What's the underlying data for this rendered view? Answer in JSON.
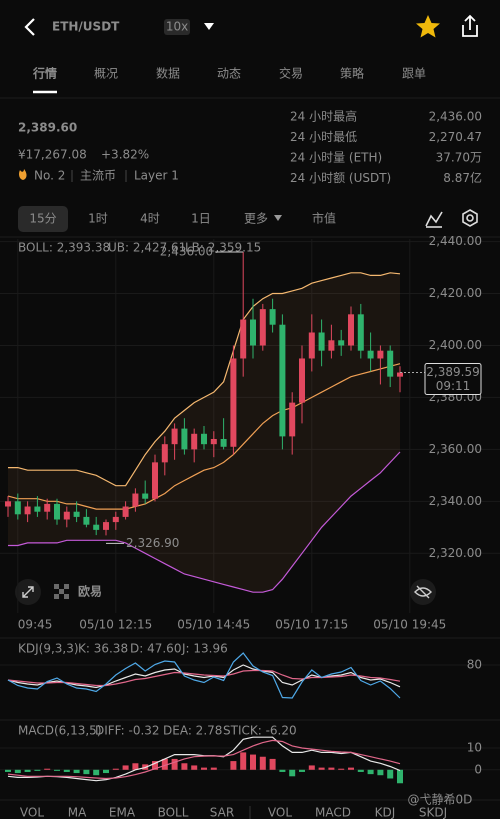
{
  "header": {
    "pair": "ETH/USDT",
    "leverage": "10x"
  },
  "tabs": [
    "行情",
    "概况",
    "数据",
    "动态",
    "交易",
    "策略",
    "跟单"
  ],
  "price": {
    "last": "2,389.60",
    "cny": "¥17,267.08",
    "change": "+3.82%",
    "rank": "No. 2",
    "tags": [
      "主流币",
      "Layer 1"
    ]
  },
  "stats": [
    {
      "label": "24 小时最高",
      "value": "2,436.00"
    },
    {
      "label": "24 小时最低",
      "value": "2,270.47"
    },
    {
      "label": "24 小时量 (ETH)",
      "value": "37.70万"
    },
    {
      "label": "24 小时额 (USDT)",
      "value": "8.87亿"
    }
  ],
  "intervals": [
    "15分",
    "1时",
    "4时",
    "1日",
    "更多",
    "市值"
  ],
  "chart_data": [
    {
      "type": "candlestick",
      "ylim": [
        2297,
        2441
      ],
      "yticks": [
        {
          "value": 2440,
          "label": "2,440.00"
        },
        {
          "value": 2420,
          "label": "2,420.00"
        },
        {
          "value": 2400,
          "label": "2,400.00"
        },
        {
          "value": 2380,
          "label": "2,380.00"
        },
        {
          "value": 2360,
          "label": "2,360.00"
        },
        {
          "value": 2340,
          "label": "2,340.00"
        },
        {
          "value": 2320,
          "label": "2,320.00"
        }
      ],
      "xticks": [
        {
          "value": 1,
          "label": "09:45"
        },
        {
          "value": 11,
          "label": "05/10 12:15"
        },
        {
          "value": 21,
          "label": "05/10 14:45"
        },
        {
          "value": 31,
          "label": "05/10 17:15"
        },
        {
          "value": 41,
          "label": "05/10 19:45"
        }
      ],
      "up_color": "#e1485f",
      "down_color": "#2fb36d",
      "open": [
        2338,
        2340,
        2335,
        2338,
        2336,
        2339,
        2333,
        2336,
        2334,
        2331,
        2329,
        2332,
        2334,
        2338,
        2343,
        2341,
        2355,
        2362,
        2368,
        2360,
        2366,
        2362,
        2364,
        2361,
        2395,
        2410,
        2400,
        2414,
        2408,
        2365,
        2378,
        2395,
        2405,
        2398,
        2402,
        2400,
        2412,
        2398,
        2395,
        2398,
        2388
      ],
      "high": [
        2342,
        2343,
        2340,
        2342,
        2341,
        2341,
        2338,
        2340,
        2337,
        2334,
        2333,
        2336,
        2340,
        2345,
        2348,
        2358,
        2365,
        2370,
        2372,
        2368,
        2369,
        2367,
        2372,
        2400,
        2436,
        2418,
        2416,
        2418,
        2412,
        2382,
        2400,
        2412,
        2410,
        2408,
        2406,
        2415,
        2416,
        2405,
        2400,
        2400,
        2392
      ],
      "low": [
        2334,
        2333,
        2332,
        2334,
        2333,
        2331,
        2330,
        2332,
        2330,
        2327,
        2326.9,
        2329,
        2333,
        2336,
        2339,
        2340,
        2350,
        2356,
        2358,
        2355,
        2360,
        2357,
        2360,
        2358,
        2388,
        2395,
        2398,
        2405,
        2360,
        2358,
        2370,
        2390,
        2392,
        2395,
        2396,
        2398,
        2395,
        2390,
        2385,
        2384,
        2382
      ],
      "close": [
        2340,
        2335,
        2338,
        2336,
        2339,
        2333,
        2336,
        2334,
        2331,
        2329,
        2332,
        2334,
        2338,
        2343,
        2341,
        2355,
        2362,
        2368,
        2360,
        2366,
        2362,
        2364,
        2361,
        2395,
        2410,
        2400,
        2414,
        2408,
        2365,
        2378,
        2395,
        2405,
        2398,
        2402,
        2400,
        2412,
        2398,
        2395,
        2398,
        2388,
        2389.59
      ],
      "series": [
        {
          "name": "BOLL: 2,393.38",
          "color": "#f0a055",
          "values": [
            2342,
            2341,
            2341,
            2341,
            2340,
            2340,
            2339,
            2339,
            2338,
            2337,
            2337,
            2337,
            2337,
            2338,
            2339,
            2341,
            2343,
            2346,
            2348,
            2350,
            2352,
            2353,
            2355,
            2358,
            2362,
            2366,
            2370,
            2373,
            2375,
            2376,
            2378,
            2380,
            2382,
            2384,
            2386,
            2388,
            2389,
            2390,
            2391,
            2392,
            2393
          ]
        },
        {
          "name": "UB: 2,427.61",
          "color": "#f5b870",
          "values": [
            2353,
            2353,
            2352,
            2352,
            2352,
            2352,
            2352,
            2352,
            2351,
            2350,
            2348,
            2346,
            2346,
            2352,
            2358,
            2363,
            2367,
            2372,
            2375,
            2378,
            2380,
            2382,
            2386,
            2398,
            2410,
            2415,
            2418,
            2420,
            2420,
            2421,
            2422,
            2424,
            2425,
            2426,
            2427,
            2428,
            2428,
            2427,
            2427,
            2428,
            2427.6
          ]
        },
        {
          "name": "LB: 2,359.15",
          "color": "#c45ad8",
          "values": [
            2323,
            2323,
            2324,
            2324,
            2324,
            2324,
            2325,
            2325,
            2325,
            2325,
            2325,
            2325,
            2324,
            2322,
            2320,
            2318,
            2316,
            2314,
            2312,
            2311,
            2310,
            2309,
            2308,
            2307,
            2306,
            2305,
            2305,
            2306,
            2310,
            2315,
            2320,
            2325,
            2330,
            2334,
            2338,
            2342,
            2345,
            2348,
            2351,
            2355,
            2359
          ]
        }
      ],
      "high_label": "2,436.00",
      "low_label": "2,326.90",
      "last_price": {
        "value": 2389.59,
        "label": "2,389.59"
      },
      "countdown": "09:11",
      "logo": "欧易"
    },
    {
      "type": "line",
      "title": "KDJ(9,3,3)",
      "ylim": [
        -20,
        120
      ],
      "yticks": [
        80
      ],
      "series": [
        {
          "name": "K: 36.38",
          "color": "#e8e8e8",
          "values": [
            50,
            45,
            42,
            40,
            45,
            48,
            44,
            40,
            38,
            35,
            40,
            48,
            55,
            62,
            58,
            65,
            70,
            72,
            62,
            58,
            55,
            58,
            55,
            70,
            80,
            72,
            68,
            65,
            45,
            40,
            50,
            60,
            55,
            58,
            60,
            65,
            55,
            50,
            52,
            45,
            36.38
          ]
        },
        {
          "name": "D: 47.60",
          "color": "#e0678a",
          "values": [
            50,
            48,
            46,
            44,
            44,
            45,
            45,
            43,
            41,
            39,
            39,
            42,
            46,
            51,
            53,
            57,
            61,
            65,
            64,
            62,
            60,
            59,
            58,
            62,
            68,
            69,
            69,
            68,
            60,
            53,
            52,
            55,
            55,
            56,
            57,
            60,
            58,
            55,
            54,
            51,
            47.6
          ]
        },
        {
          "name": "J: 13.96",
          "color": "#4fa9e8",
          "values": [
            50,
            39,
            34,
            32,
            47,
            54,
            42,
            34,
            32,
            27,
            42,
            60,
            73,
            84,
            68,
            81,
            88,
            86,
            58,
            50,
            45,
            56,
            49,
            86,
            104,
            78,
            66,
            59,
            15,
            14,
            46,
            70,
            55,
            62,
            66,
            75,
            49,
            40,
            48,
            33,
            13.96
          ]
        }
      ]
    },
    {
      "type": "macd",
      "title": "MACD(6,13,5)",
      "ylim": [
        -7,
        16
      ],
      "yticks": [
        10,
        0
      ],
      "series": [
        {
          "name": "DIFF: -0.32",
          "color": "#e8e8e8",
          "values": [
            -3,
            -3.5,
            -3.5,
            -3.3,
            -3,
            -3.2,
            -3.5,
            -4,
            -4.5,
            -5,
            -4.5,
            -3.5,
            -2,
            0,
            1,
            3,
            5,
            7,
            7,
            7,
            6.5,
            6.5,
            6,
            9,
            14,
            15,
            15,
            15,
            11,
            8,
            8,
            9,
            8,
            8,
            7.5,
            8,
            6,
            4,
            3,
            1.5,
            -0.32
          ]
        },
        {
          "name": "DEA: 2.78",
          "color": "#e0678a",
          "values": [
            -2,
            -2.5,
            -3,
            -3,
            -3,
            -3,
            -3,
            -3.2,
            -3.5,
            -3.8,
            -4,
            -3.8,
            -3.2,
            -2.2,
            -1,
            0.5,
            2,
            3.5,
            5,
            6,
            6.3,
            6.4,
            6.3,
            7,
            9,
            11,
            12.5,
            13.5,
            13,
            11,
            10,
            9.5,
            9,
            8.5,
            8.2,
            8,
            7,
            6,
            5,
            4,
            2.78
          ]
        },
        {
          "name": "STICK: -6.20",
          "color": "#e8e8e8",
          "values": [
            -1,
            -1.5,
            -1,
            -0.5,
            0.5,
            -0.5,
            -1,
            -1.5,
            -2,
            -2.5,
            -1.5,
            0.5,
            2,
            3,
            2.5,
            4,
            5,
            5,
            3,
            2,
            1,
            1,
            0,
            4,
            8,
            7,
            6,
            5,
            -1,
            -3,
            -1,
            2,
            1,
            1,
            0.5,
            1,
            -1,
            -2,
            -2.5,
            -4,
            -6.2
          ]
        }
      ]
    }
  ],
  "indicator_tabs": [
    "VOL",
    "MA",
    "EMA",
    "BOLL",
    "SAR",
    "VOL",
    "MACD",
    "KDJ",
    "SKDJ"
  ],
  "watermark": "@弋静希0D"
}
